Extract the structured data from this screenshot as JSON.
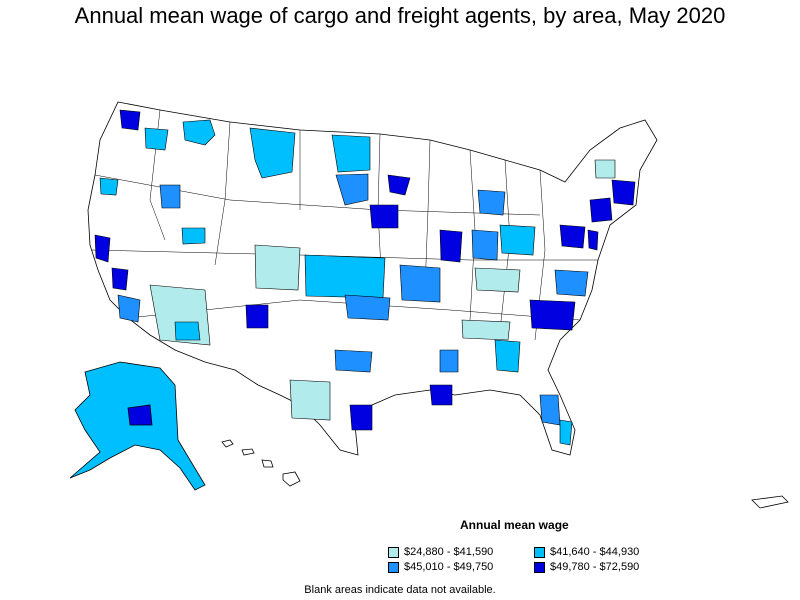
{
  "title": "Annual mean wage of cargo and freight agents, by area, May 2020",
  "legend": {
    "title": "Annual mean wage",
    "items": [
      {
        "label": "$24,880 - $41,590",
        "color": "#b2ebeb"
      },
      {
        "label": "$41,640 - $44,930",
        "color": "#00bfff"
      },
      {
        "label": "$45,010 - $49,750",
        "color": "#1e90ff"
      },
      {
        "label": "$49,780 - $72,590",
        "color": "#0000e0"
      }
    ]
  },
  "footnote": "Blank areas indicate data not available.",
  "colors": {
    "no_data": "#ffffff",
    "border": "#000000"
  }
}
